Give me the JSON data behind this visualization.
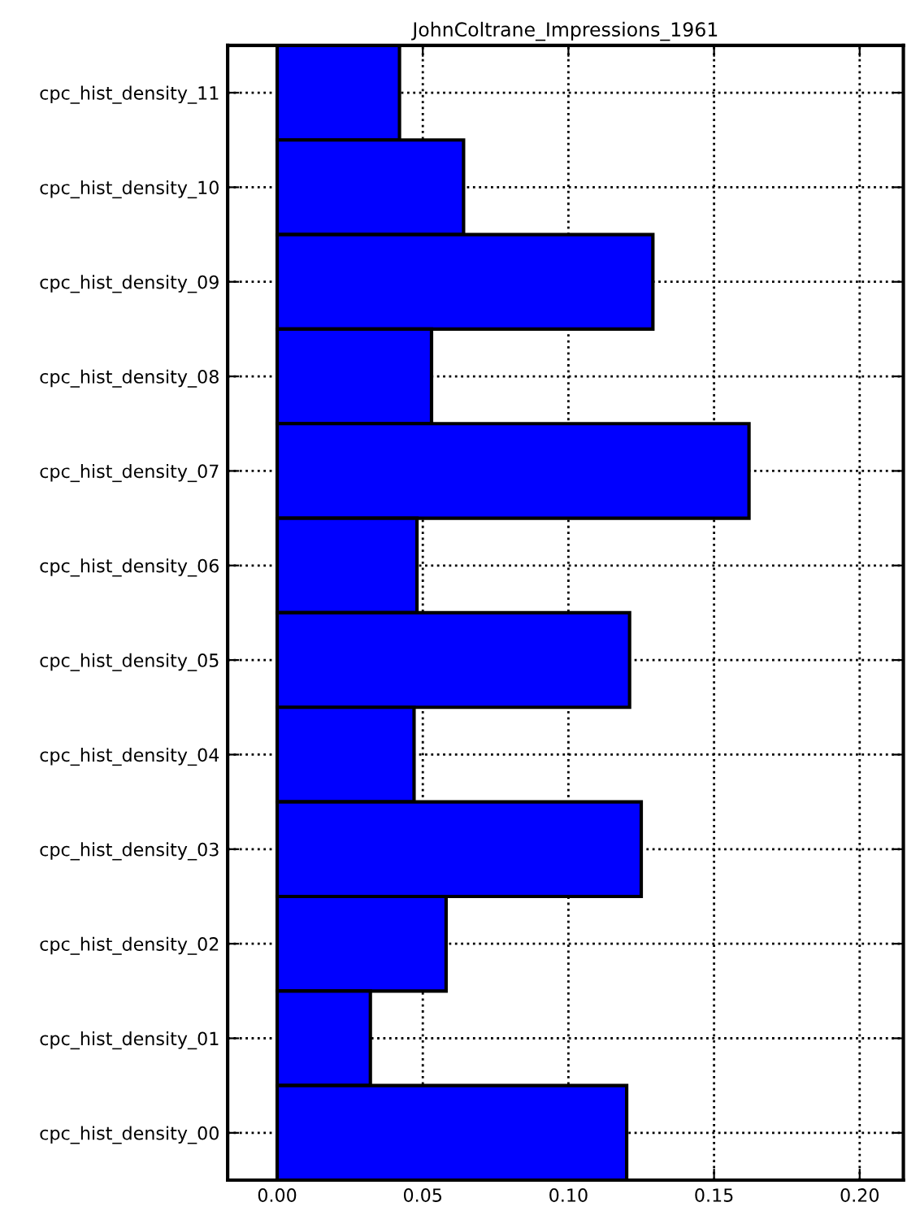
{
  "chart_data": {
    "type": "bar",
    "orientation": "horizontal",
    "title": "JohnColtrane_Impressions_1961",
    "categories": [
      "cpc_hist_density_11",
      "cpc_hist_density_10",
      "cpc_hist_density_09",
      "cpc_hist_density_08",
      "cpc_hist_density_07",
      "cpc_hist_density_06",
      "cpc_hist_density_05",
      "cpc_hist_density_04",
      "cpc_hist_density_03",
      "cpc_hist_density_02",
      "cpc_hist_density_01",
      "cpc_hist_density_00"
    ],
    "values": [
      0.042,
      0.064,
      0.129,
      0.053,
      0.162,
      0.048,
      0.121,
      0.047,
      0.125,
      0.058,
      0.032,
      0.12
    ],
    "color": "#0000ff",
    "xlim": [
      -0.017,
      0.215
    ],
    "xticks": [
      {
        "value": 0,
        "label": "0.00"
      },
      {
        "value": 0.05,
        "label": "0.05"
      },
      {
        "value": 0.1,
        "label": "0.10"
      },
      {
        "value": 0.15,
        "label": "0.15"
      },
      {
        "value": 0.2,
        "label": "0.20"
      }
    ],
    "grid": true,
    "line_style": "dotted"
  }
}
